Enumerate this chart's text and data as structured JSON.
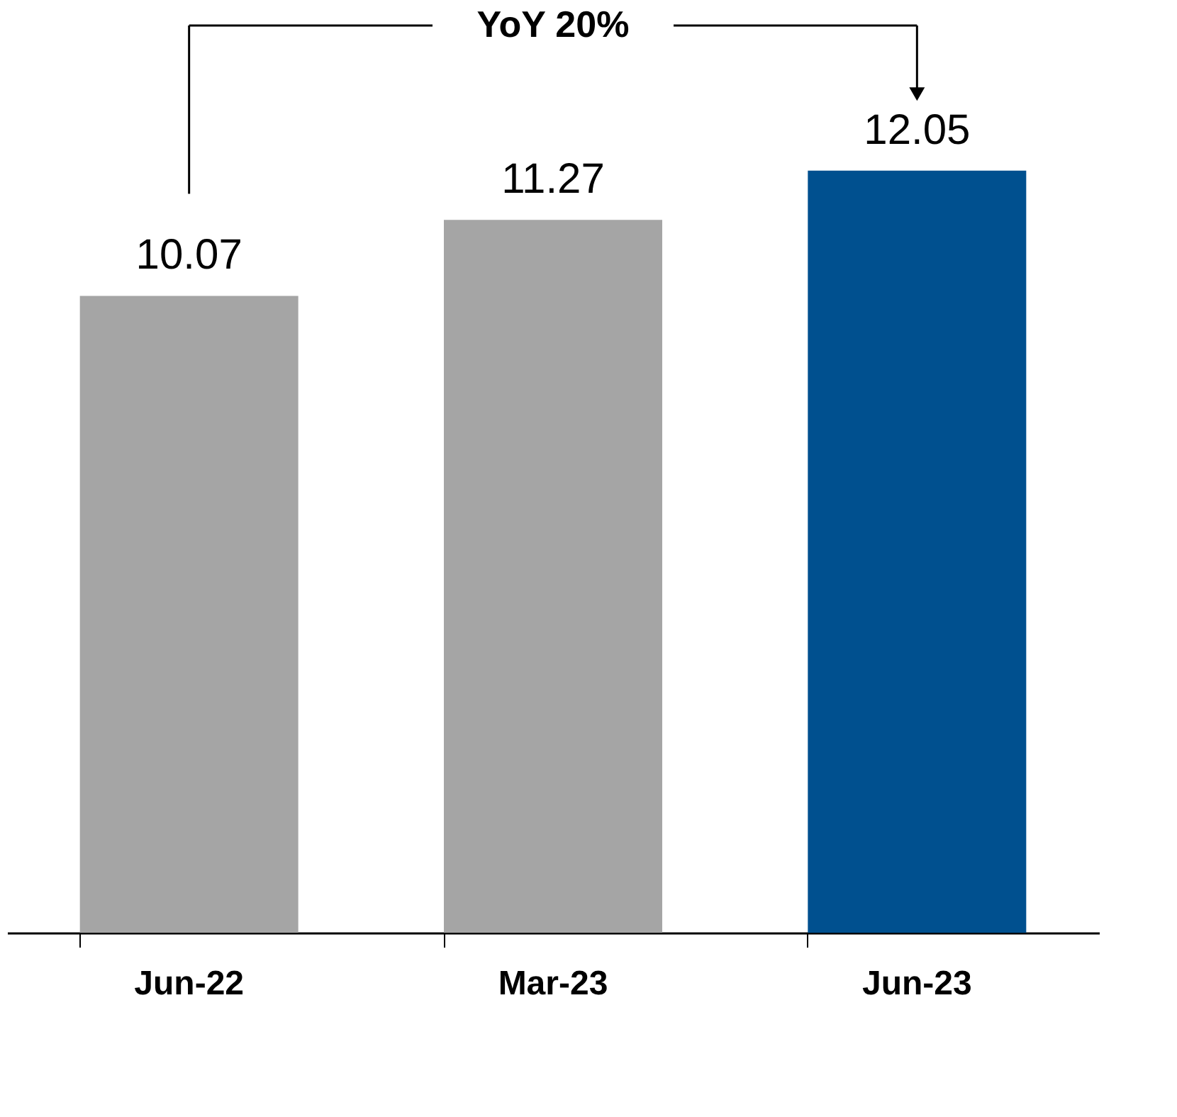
{
  "chart_data": {
    "type": "bar",
    "categories": [
      "Jun-22",
      "Mar-23",
      "Jun-23"
    ],
    "values": [
      10.07,
      11.27,
      12.05
    ],
    "colors": [
      "#a5a5a5",
      "#a5a5a5",
      "#00508f"
    ],
    "data_labels": true,
    "annotations": [
      "YoY 20%"
    ],
    "grid": false
  }
}
